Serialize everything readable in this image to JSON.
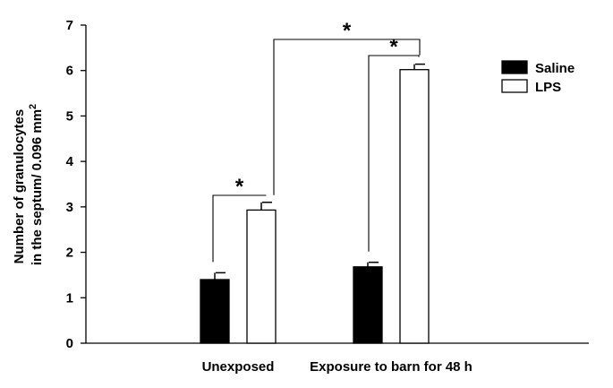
{
  "chart_data": {
    "type": "bar",
    "title": "",
    "xlabel": "",
    "ylabel_line1": "Number of granulocytes",
    "ylabel_line2_main": "in the septum/ 0.096 mm",
    "ylabel_line2_sup": "2",
    "ylim": [
      0,
      7
    ],
    "yticks": [
      "0",
      "1",
      "2",
      "3",
      "4",
      "5",
      "6",
      "7"
    ],
    "categories": [
      "Unexposed",
      "Exposure to barn for 48 h"
    ],
    "series": [
      {
        "name": "Saline",
        "values": [
          1.4,
          1.68
        ],
        "errors": [
          0.15,
          0.1
        ],
        "fill": "#000000"
      },
      {
        "name": "LPS",
        "values": [
          2.93,
          6.02
        ],
        "errors": [
          0.17,
          0.12
        ],
        "fill": "#ffffff"
      }
    ],
    "legend_position": "top-right",
    "significance": [
      {
        "label": "*",
        "between": "Unexposed Saline vs LPS"
      },
      {
        "label": "*",
        "between": "Exposure Saline vs LPS"
      },
      {
        "label": "*",
        "between": "Unexposed LPS vs Exposure LPS"
      }
    ]
  }
}
